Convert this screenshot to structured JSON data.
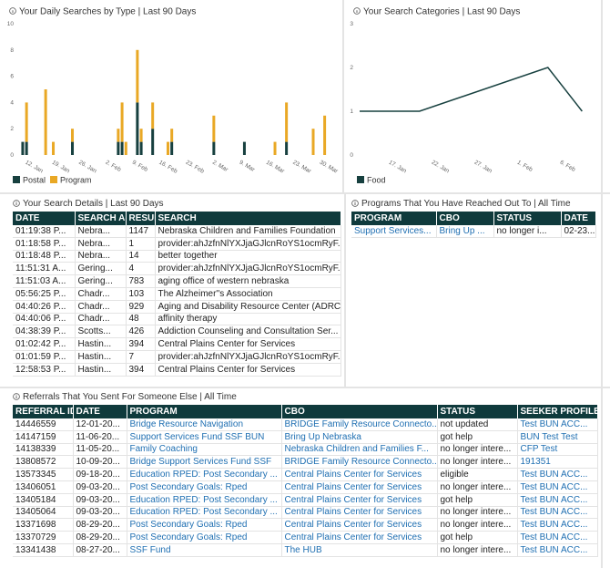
{
  "chart_data": [
    {
      "type": "bar",
      "stacked": true,
      "title": "Your Daily Searches by Type | Last 90 Days",
      "x": [
        10,
        11,
        16,
        18,
        23,
        35,
        36,
        37,
        40,
        41,
        44,
        48,
        49,
        60,
        68,
        76,
        79,
        86,
        89
      ],
      "xlim": [
        9.3,
        91
      ],
      "xticks": [
        {
          "value": 12,
          "label": "12. Jan"
        },
        {
          "value": 19,
          "label": "19. Jan"
        },
        {
          "value": 26,
          "label": "26. Jan"
        },
        {
          "value": 33,
          "label": "2. Feb"
        },
        {
          "value": 40,
          "label": "9. Feb"
        },
        {
          "value": 47,
          "label": "16. Feb"
        },
        {
          "value": 54,
          "label": "23. Feb"
        },
        {
          "value": 61,
          "label": "2. Mar"
        },
        {
          "value": 68,
          "label": "9. Mar"
        },
        {
          "value": 75,
          "label": "16. Mar"
        },
        {
          "value": 82,
          "label": "23. Mar"
        },
        {
          "value": 89,
          "label": "30. Mar"
        }
      ],
      "ylim": [
        0,
        10
      ],
      "yticks": [
        0,
        2,
        4,
        6,
        8,
        10
      ],
      "grid": false,
      "legend": "bottom-left",
      "series": [
        {
          "name": "Postal",
          "color": "#17403f",
          "values": [
            1,
            1,
            0,
            0,
            1,
            1,
            1,
            0,
            4,
            1,
            2,
            0,
            1,
            1,
            1,
            0,
            1,
            0,
            0
          ]
        },
        {
          "name": "Program",
          "color": "#e9a825",
          "values": [
            0,
            3,
            5,
            1,
            1,
            1,
            3,
            1,
            4,
            1,
            2,
            1,
            1,
            2,
            0,
            1,
            3,
            2,
            3
          ]
        }
      ]
    },
    {
      "type": "line",
      "title": "Your Search Categories | Last 90 Days",
      "x": [
        13,
        20,
        35,
        39
      ],
      "xlim": [
        13,
        39.6
      ],
      "xticks": [
        {
          "value": 17,
          "label": "17. Jan"
        },
        {
          "value": 22,
          "label": "22. Jan"
        },
        {
          "value": 27,
          "label": "27. Jan"
        },
        {
          "value": 32,
          "label": "1. Feb"
        },
        {
          "value": 37,
          "label": "6. Feb"
        }
      ],
      "ylim": [
        0,
        3
      ],
      "yticks": [
        0,
        1,
        2,
        3
      ],
      "grid": false,
      "legend": "bottom-left",
      "series": [
        {
          "name": "Food",
          "color": "#17403f",
          "values": [
            1,
            1,
            2,
            1
          ]
        }
      ]
    }
  ],
  "details_table": {
    "title": "Your Search Details | Last 90 Days",
    "columns": [
      "DATE",
      "SEARCH A",
      "RESUL",
      "SEARCH"
    ],
    "rows": [
      [
        "01:19:38 P...",
        "Nebra...",
        1147,
        "Nebraska Children and Families Foundation"
      ],
      [
        "01:18:58 P...",
        "Nebra...",
        1,
        "provider:ahJzfnNlYXJjaGJlcnRoYS1ocmRyF..."
      ],
      [
        "01:18:48 P...",
        "Nebra...",
        14,
        "better together"
      ],
      [
        "11:51:31 A...",
        "Gering...",
        4,
        "provider:ahJzfnNlYXJjaGJlcnRoYS1ocmRyF..."
      ],
      [
        "11:51:03 A...",
        "Gering...",
        783,
        "aging office of western nebraska"
      ],
      [
        "05:56:25 P...",
        "Chadr...",
        103,
        "The Alzheimer''s Association"
      ],
      [
        "04:40:26 P...",
        "Chadr...",
        929,
        "Aging and Disability Resource Center (ADRC)"
      ],
      [
        "04:40:06 P...",
        "Chadr...",
        48,
        "affinity therapy"
      ],
      [
        "04:38:39 P...",
        "Scotts...",
        426,
        "Addiction Counseling and Consultation Ser..."
      ],
      [
        "01:02:42 P...",
        "Hastin...",
        394,
        "Central Plains Center for Services"
      ],
      [
        "01:01:59 P...",
        "Hastin...",
        7,
        "provider:ahJzfnNlYXJjaGJlcnRoYS1ocmRyF..."
      ],
      [
        "12:58:53 P...",
        "Hastin...",
        394,
        "Central Plains Center for Services"
      ]
    ]
  },
  "programs_table": {
    "title": "Programs That You Have Reached Out To | All Time",
    "columns": [
      "PROGRAM",
      "CBO",
      "STATUS",
      "DATE"
    ],
    "rows": [
      [
        "Support Services...",
        "Bring Up ...",
        "no longer i...",
        "02-23..."
      ]
    ]
  },
  "referrals_table": {
    "title": "Referrals That You Sent For Someone Else | All Time",
    "columns": [
      "REFERRAL ID",
      "DATE",
      "PROGRAM",
      "CBO",
      "STATUS",
      "SEEKER PROFILE"
    ],
    "rows": [
      [
        "14446559",
        "12-01-20...",
        "Bridge Resource Navigation",
        "BRIDGE Family Resource Connecto...",
        "not updated",
        "Test BUN ACC..."
      ],
      [
        "14147159",
        "11-06-20...",
        "Support Services Fund SSF BUN",
        "Bring Up Nebraska",
        "got help",
        "BUN Test Test"
      ],
      [
        "14138339",
        "11-05-20...",
        "Family Coaching",
        "Nebraska Children and Families F...",
        "no longer intere...",
        "CFP Test"
      ],
      [
        "13808572",
        "10-09-20...",
        "Bridge Support Services Fund SSF",
        "BRIDGE Family Resource Connecto...",
        "no longer intere...",
        "191351"
      ],
      [
        "13573345",
        "09-18-20...",
        "Education RPED: Post Secondary ...",
        "Central Plains Center for Services",
        "eligible",
        "Test BUN ACC..."
      ],
      [
        "13406051",
        "09-03-20...",
        "Post Secondary Goals: Rped",
        "Central Plains Center for Services",
        "no longer intere...",
        "Test BUN ACC..."
      ],
      [
        "13405184",
        "09-03-20...",
        "Education RPED: Post Secondary ...",
        "Central Plains Center for Services",
        "got help",
        "Test BUN ACC..."
      ],
      [
        "13405064",
        "09-03-20...",
        "Education RPED: Post Secondary ...",
        "Central Plains Center for Services",
        "no longer intere...",
        "Test BUN ACC..."
      ],
      [
        "13371698",
        "08-29-20...",
        "Post Secondary Goals: Rped",
        "Central Plains Center for Services",
        "no longer intere...",
        "Test BUN ACC..."
      ],
      [
        "13370729",
        "08-29-20...",
        "Post Secondary Goals: Rped",
        "Central Plains Center for Services",
        "got help",
        "Test BUN ACC..."
      ],
      [
        "13341438",
        "08-27-20...",
        "SSF Fund",
        "The HUB",
        "no longer intere...",
        "Test BUN ACC..."
      ]
    ]
  }
}
